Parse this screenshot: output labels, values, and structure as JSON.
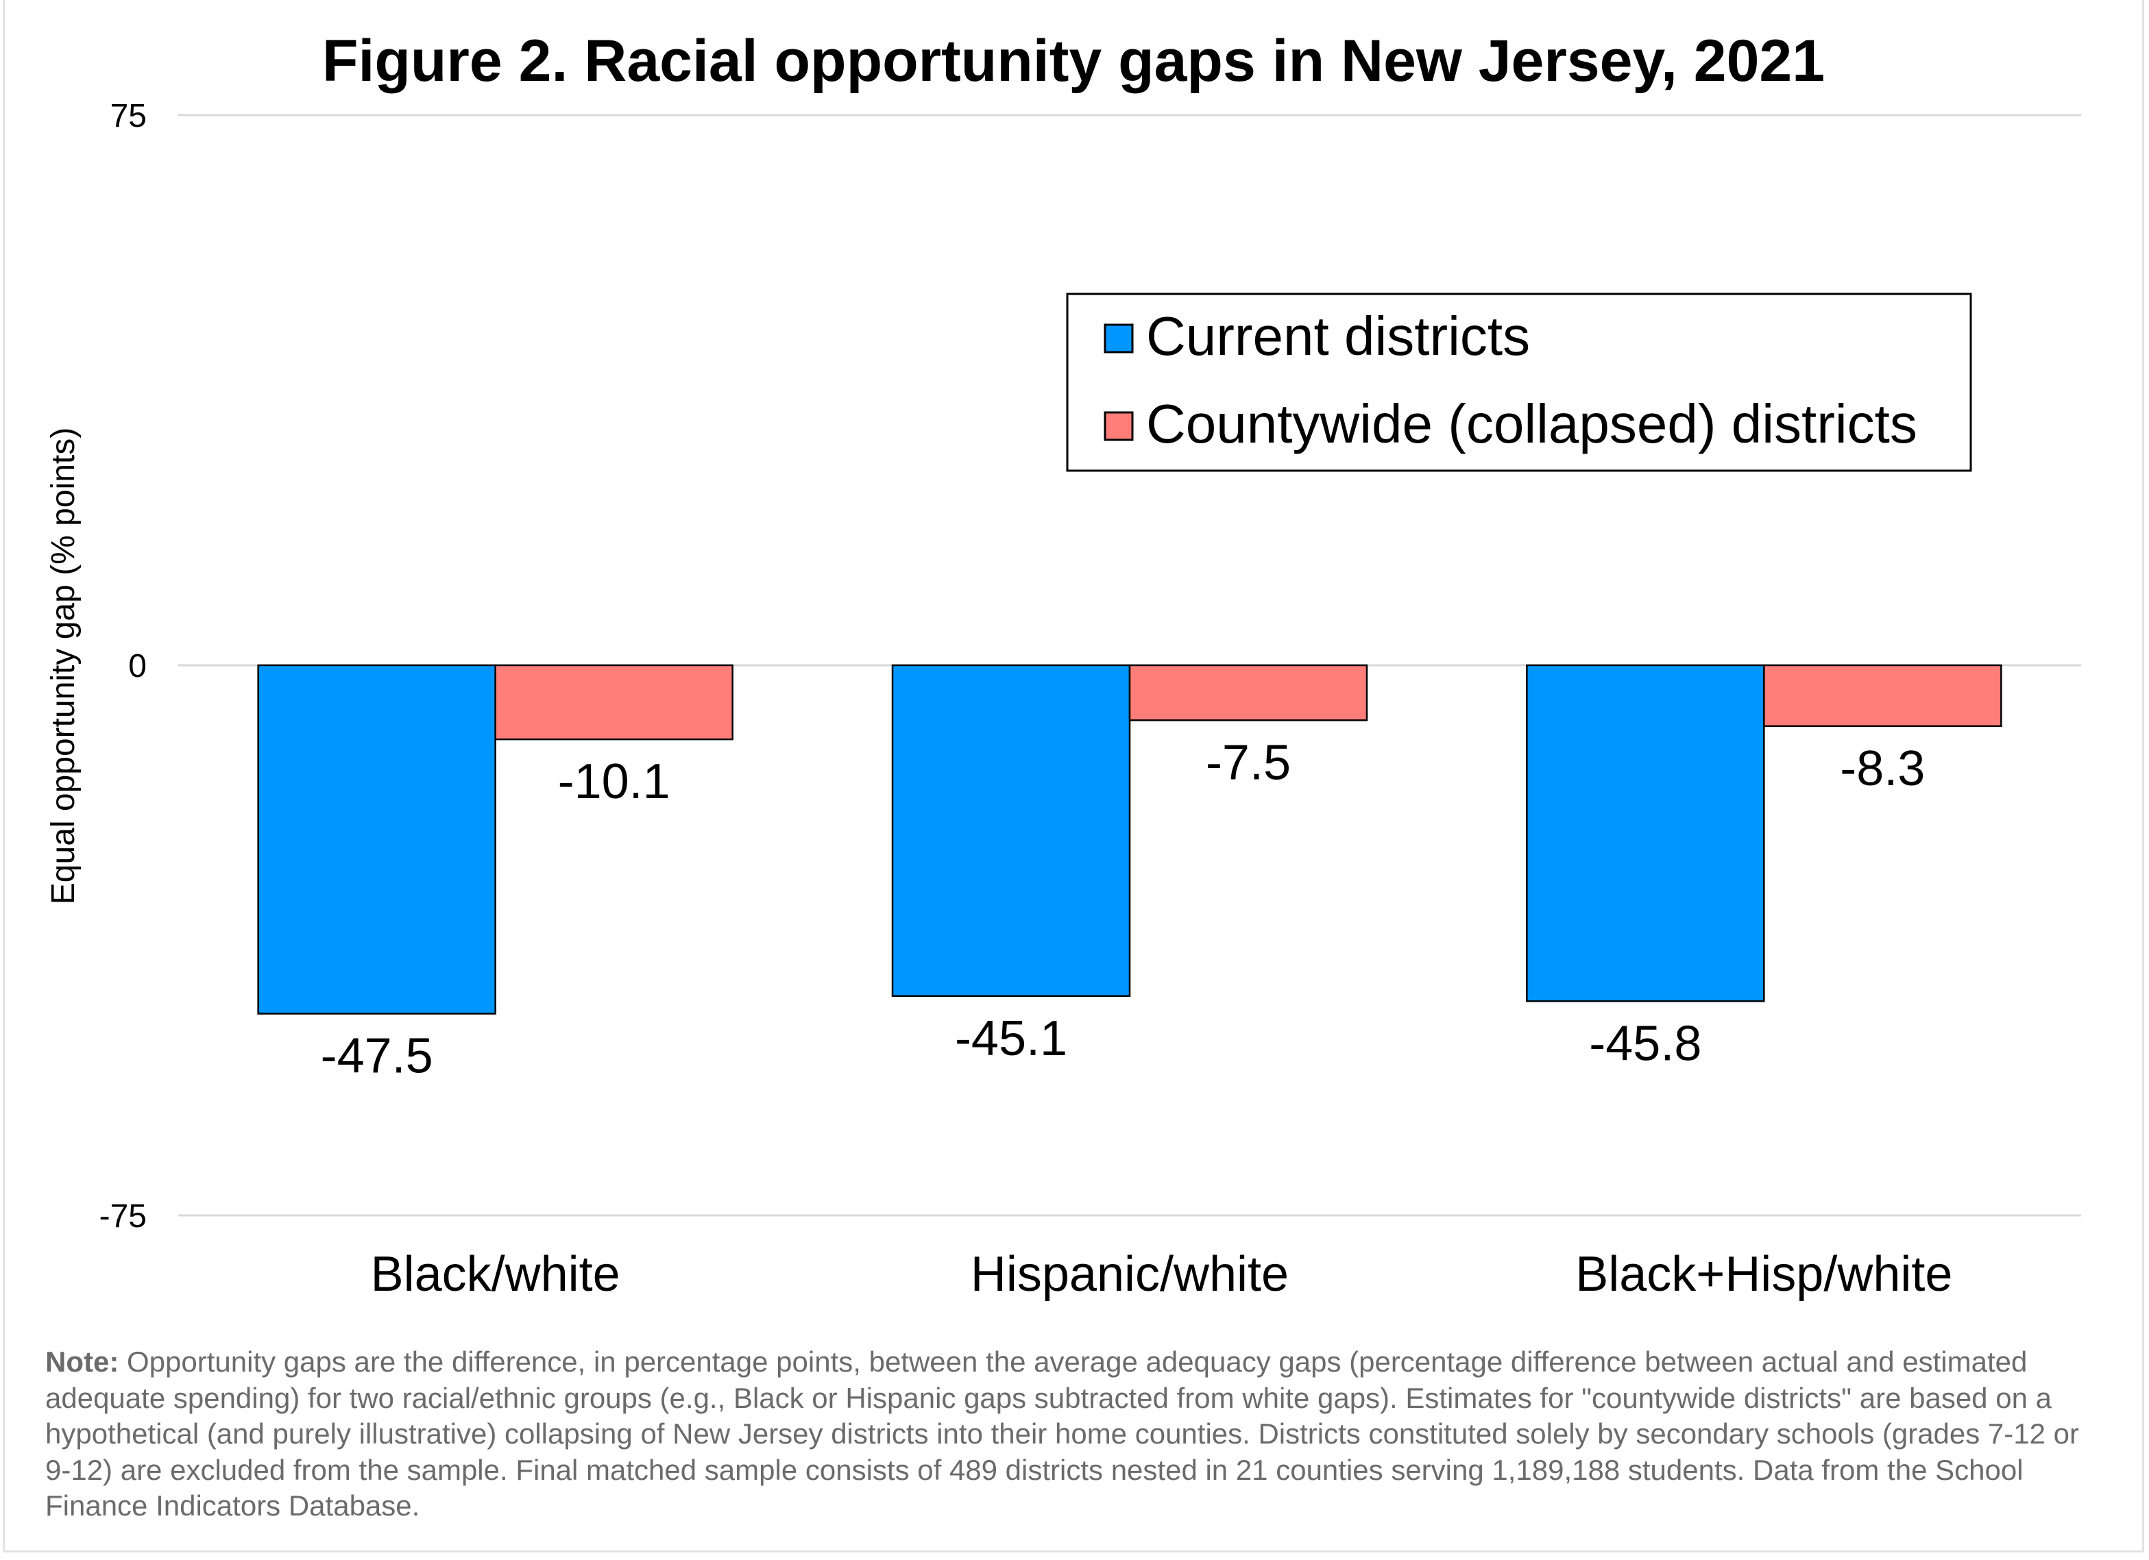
{
  "chart_data": {
    "type": "bar",
    "title": "Figure 2. Racial opportunity gaps in New Jersey, 2021",
    "xlabel": "",
    "ylabel": "Equal opportunity gap (% points)",
    "ylim": [
      -75,
      75
    ],
    "yticks": [
      "75",
      "0",
      "-75"
    ],
    "ytick_values": [
      75,
      0,
      -75
    ],
    "grid": true,
    "legend_placement": "top-right",
    "categories": [
      "Black/white",
      "Hispanic/white",
      "Black+Hisp/white"
    ],
    "series": [
      {
        "name": "Current districts",
        "color": "#0096FF",
        "values": [
          -47.5,
          -45.1,
          -45.8
        ],
        "labels": [
          "-47.5",
          "-45.1",
          "-45.8"
        ]
      },
      {
        "name": "Countywide (collapsed) districts",
        "color": "#FF7E79",
        "values": [
          -10.1,
          -7.5,
          -8.3
        ],
        "labels": [
          "-10.1",
          "-7.5",
          "-8.3"
        ]
      }
    ]
  },
  "note": {
    "label": "Note:",
    "text": " Opportunity gaps are the difference, in percentage points, between the average adequacy gaps (percentage difference between actual and estimated adequate spending) for two racial/ethnic groups (e.g., Black or Hispanic gaps subtracted from white gaps). Estimates for \"countywide districts\" are based on a hypothetical (and purely illustrative) collapsing of New Jersey districts into their home counties. Districts constituted solely by secondary schools (grades 7-12 or 9-12) are excluded from the sample. Final matched sample consists of 489 districts nested in 21 counties serving 1,189,188 students. Data from the School Finance Indicators Database."
  }
}
